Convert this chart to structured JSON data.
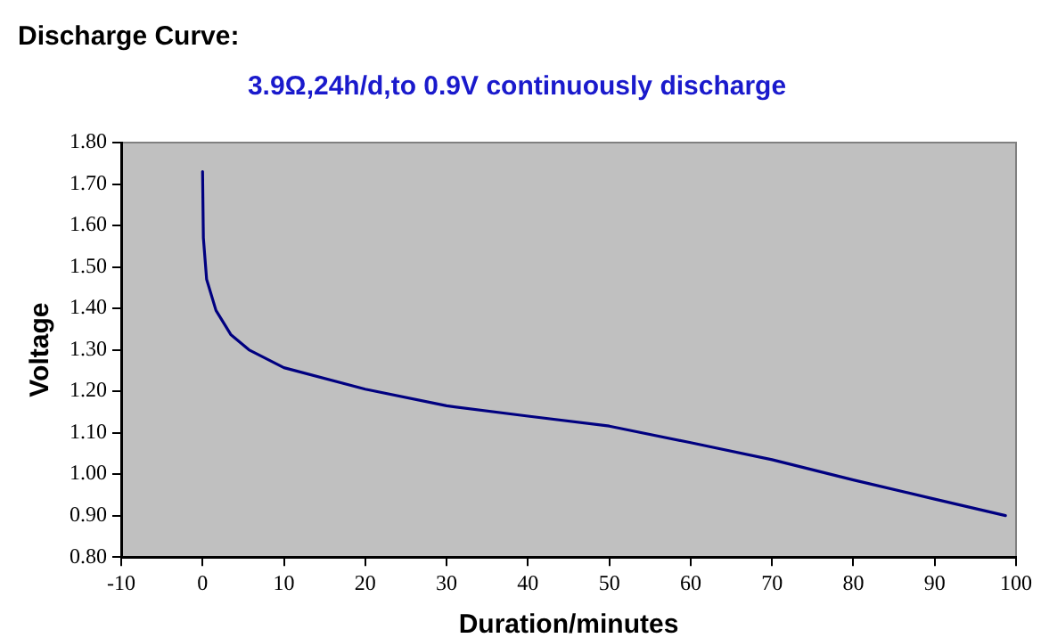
{
  "chart_data": {
    "type": "line",
    "title": "Discharge Curve:",
    "subtitle": "3.9Ω,24h/d,to 0.9V continuously discharge",
    "xlabel": "Duration/minutes",
    "ylabel": "Voltage",
    "x": [
      0,
      0.1,
      0.5,
      1.65,
      3.5,
      5.7,
      10,
      20,
      30,
      40,
      50,
      60,
      70,
      80,
      90,
      98.7
    ],
    "series": [
      {
        "color": "#000080",
        "values": [
          1.73,
          1.57,
          1.47,
          1.395,
          1.336,
          1.3,
          1.257,
          1.205,
          1.165,
          1.14,
          1.116,
          1.076,
          1.035,
          0.986,
          0.94,
          0.9
        ]
      }
    ],
    "xlim": [
      -10,
      100
    ],
    "xticks": [
      -10,
      0,
      10,
      20,
      30,
      40,
      50,
      60,
      70,
      80,
      90,
      100
    ],
    "ylim": [
      0.8,
      1.8
    ],
    "yticks": [
      {
        "value": 0.8,
        "label": "0.80"
      },
      {
        "value": 0.9,
        "label": "0.90"
      },
      {
        "value": 1.0,
        "label": "1.00"
      },
      {
        "value": 1.1,
        "label": "1.10"
      },
      {
        "value": 1.2,
        "label": "1.20"
      },
      {
        "value": 1.3,
        "label": "1.30"
      },
      {
        "value": 1.4,
        "label": "1.40"
      },
      {
        "value": 1.5,
        "label": "1.50"
      },
      {
        "value": 1.6,
        "label": "1.60"
      },
      {
        "value": 1.7,
        "label": "1.70"
      },
      {
        "value": 1.8,
        "label": "1.80"
      }
    ],
    "grid": false,
    "legend": false,
    "marker": "none",
    "line_style": "solid"
  }
}
